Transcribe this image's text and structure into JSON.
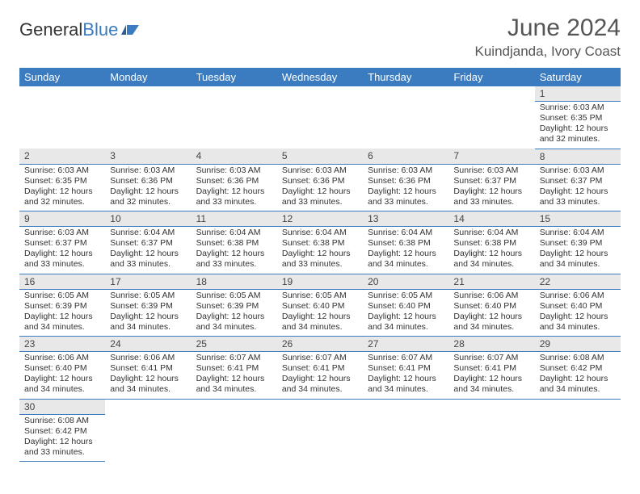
{
  "logo": {
    "word1": "General",
    "word2": "Blue"
  },
  "title": "June 2024",
  "location": "Kuindjanda, Ivory Coast",
  "colors": {
    "header_bg": "#3b7bbf",
    "header_text": "#ffffff",
    "daynum_bg": "#e8e8e8",
    "row_border": "#3b7bbf",
    "text": "#333333",
    "title_text": "#555555"
  },
  "daysOfWeek": [
    "Sunday",
    "Monday",
    "Tuesday",
    "Wednesday",
    "Thursday",
    "Friday",
    "Saturday"
  ],
  "weeks": [
    [
      null,
      null,
      null,
      null,
      null,
      null,
      {
        "n": "1",
        "sr": "6:03 AM",
        "ss": "6:35 PM",
        "dl": "12 hours and 32 minutes."
      }
    ],
    [
      {
        "n": "2",
        "sr": "6:03 AM",
        "ss": "6:35 PM",
        "dl": "12 hours and 32 minutes."
      },
      {
        "n": "3",
        "sr": "6:03 AM",
        "ss": "6:36 PM",
        "dl": "12 hours and 32 minutes."
      },
      {
        "n": "4",
        "sr": "6:03 AM",
        "ss": "6:36 PM",
        "dl": "12 hours and 33 minutes."
      },
      {
        "n": "5",
        "sr": "6:03 AM",
        "ss": "6:36 PM",
        "dl": "12 hours and 33 minutes."
      },
      {
        "n": "6",
        "sr": "6:03 AM",
        "ss": "6:36 PM",
        "dl": "12 hours and 33 minutes."
      },
      {
        "n": "7",
        "sr": "6:03 AM",
        "ss": "6:37 PM",
        "dl": "12 hours and 33 minutes."
      },
      {
        "n": "8",
        "sr": "6:03 AM",
        "ss": "6:37 PM",
        "dl": "12 hours and 33 minutes."
      }
    ],
    [
      {
        "n": "9",
        "sr": "6:03 AM",
        "ss": "6:37 PM",
        "dl": "12 hours and 33 minutes."
      },
      {
        "n": "10",
        "sr": "6:04 AM",
        "ss": "6:37 PM",
        "dl": "12 hours and 33 minutes."
      },
      {
        "n": "11",
        "sr": "6:04 AM",
        "ss": "6:38 PM",
        "dl": "12 hours and 33 minutes."
      },
      {
        "n": "12",
        "sr": "6:04 AM",
        "ss": "6:38 PM",
        "dl": "12 hours and 33 minutes."
      },
      {
        "n": "13",
        "sr": "6:04 AM",
        "ss": "6:38 PM",
        "dl": "12 hours and 34 minutes."
      },
      {
        "n": "14",
        "sr": "6:04 AM",
        "ss": "6:38 PM",
        "dl": "12 hours and 34 minutes."
      },
      {
        "n": "15",
        "sr": "6:04 AM",
        "ss": "6:39 PM",
        "dl": "12 hours and 34 minutes."
      }
    ],
    [
      {
        "n": "16",
        "sr": "6:05 AM",
        "ss": "6:39 PM",
        "dl": "12 hours and 34 minutes."
      },
      {
        "n": "17",
        "sr": "6:05 AM",
        "ss": "6:39 PM",
        "dl": "12 hours and 34 minutes."
      },
      {
        "n": "18",
        "sr": "6:05 AM",
        "ss": "6:39 PM",
        "dl": "12 hours and 34 minutes."
      },
      {
        "n": "19",
        "sr": "6:05 AM",
        "ss": "6:40 PM",
        "dl": "12 hours and 34 minutes."
      },
      {
        "n": "20",
        "sr": "6:05 AM",
        "ss": "6:40 PM",
        "dl": "12 hours and 34 minutes."
      },
      {
        "n": "21",
        "sr": "6:06 AM",
        "ss": "6:40 PM",
        "dl": "12 hours and 34 minutes."
      },
      {
        "n": "22",
        "sr": "6:06 AM",
        "ss": "6:40 PM",
        "dl": "12 hours and 34 minutes."
      }
    ],
    [
      {
        "n": "23",
        "sr": "6:06 AM",
        "ss": "6:40 PM",
        "dl": "12 hours and 34 minutes."
      },
      {
        "n": "24",
        "sr": "6:06 AM",
        "ss": "6:41 PM",
        "dl": "12 hours and 34 minutes."
      },
      {
        "n": "25",
        "sr": "6:07 AM",
        "ss": "6:41 PM",
        "dl": "12 hours and 34 minutes."
      },
      {
        "n": "26",
        "sr": "6:07 AM",
        "ss": "6:41 PM",
        "dl": "12 hours and 34 minutes."
      },
      {
        "n": "27",
        "sr": "6:07 AM",
        "ss": "6:41 PM",
        "dl": "12 hours and 34 minutes."
      },
      {
        "n": "28",
        "sr": "6:07 AM",
        "ss": "6:41 PM",
        "dl": "12 hours and 34 minutes."
      },
      {
        "n": "29",
        "sr": "6:08 AM",
        "ss": "6:42 PM",
        "dl": "12 hours and 34 minutes."
      }
    ],
    [
      {
        "n": "30",
        "sr": "6:08 AM",
        "ss": "6:42 PM",
        "dl": "12 hours and 33 minutes."
      },
      null,
      null,
      null,
      null,
      null,
      null
    ]
  ],
  "labels": {
    "sunrise": "Sunrise:",
    "sunset": "Sunset:",
    "daylight": "Daylight:"
  }
}
